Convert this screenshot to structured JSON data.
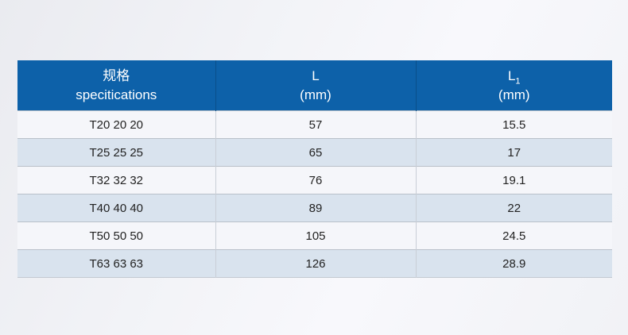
{
  "table": {
    "headers": [
      {
        "line1": "规格",
        "line2": "specitications"
      },
      {
        "line1": "L",
        "line2": "(mm)"
      },
      {
        "base": "L",
        "sub": "1",
        "line2": "(mm)"
      }
    ],
    "rows": [
      [
        "T20 20 20",
        "57",
        "15.5"
      ],
      [
        "T25 25 25",
        "65",
        "17"
      ],
      [
        "T32 32 32",
        "76",
        "19.1"
      ],
      [
        "T40 40 40",
        "89",
        "22"
      ],
      [
        "T50 50 50",
        "105",
        "24.5"
      ],
      [
        "T63 63 63",
        "126",
        "28.9"
      ]
    ]
  },
  "colors": {
    "header_bg": "#0d61a9",
    "header_text": "#ffffff",
    "row_odd": "#f5f6fa",
    "row_even": "#d9e3ee",
    "body_text": "#222222"
  }
}
